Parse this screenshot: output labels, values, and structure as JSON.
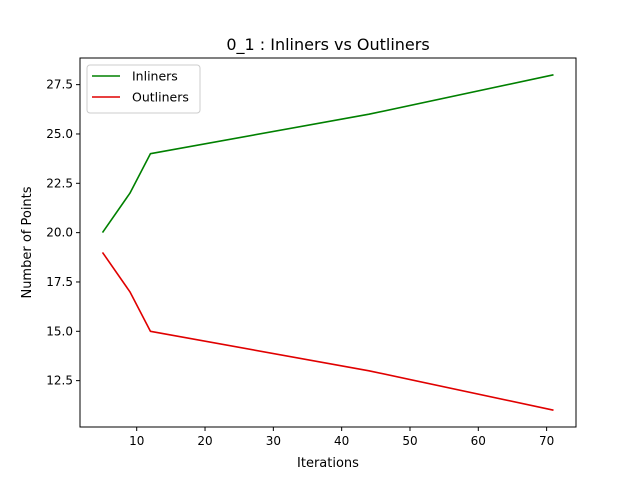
{
  "chart_data": {
    "type": "line",
    "title": "0_1 : Inliners vs Outliners",
    "xlabel": "Iterations",
    "ylabel": "Number of Points",
    "xlim": [
      1.7,
      74.3
    ],
    "ylim": [
      10.15,
      28.85
    ],
    "xticks": [
      10,
      20,
      30,
      40,
      50,
      60,
      70
    ],
    "yticks": [
      12.5,
      15.0,
      17.5,
      20.0,
      22.5,
      25.0,
      27.5
    ],
    "ytick_labels": [
      "12.5",
      "15.0",
      "17.5",
      "20.0",
      "22.5",
      "25.0",
      "27.5"
    ],
    "grid": false,
    "legend_position": "top-left",
    "series": [
      {
        "name": "Inliners",
        "color": "#008000",
        "x": [
          5,
          9,
          12,
          44,
          71
        ],
        "y": [
          20,
          22,
          24,
          26,
          28
        ]
      },
      {
        "name": "Outliners",
        "color": "#e00000",
        "x": [
          5,
          9,
          12,
          44,
          71
        ],
        "y": [
          19,
          17,
          15,
          13,
          11
        ]
      }
    ]
  }
}
